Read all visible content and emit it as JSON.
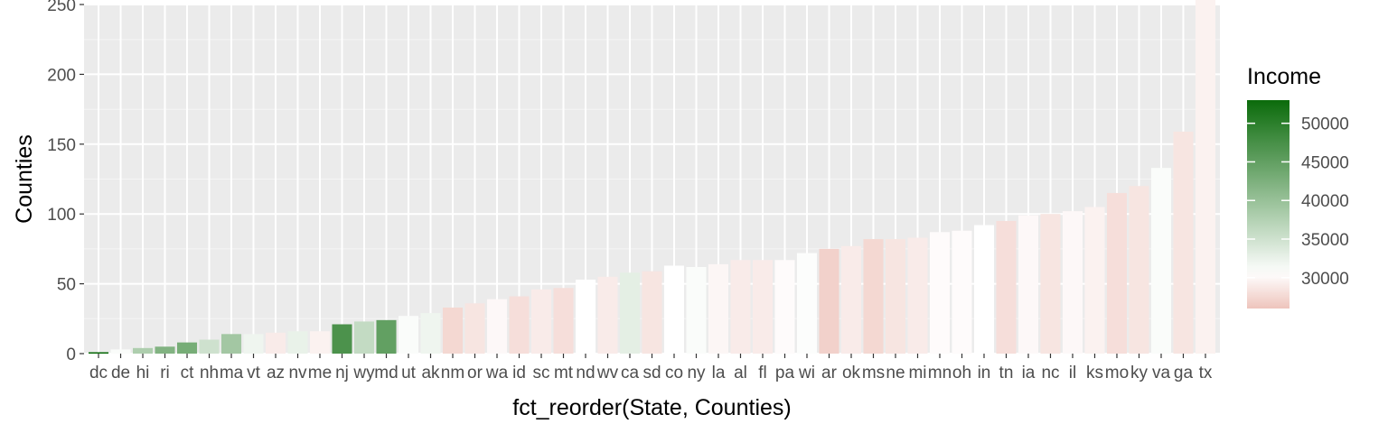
{
  "chart_data": {
    "type": "bar",
    "xlabel": "fct_reorder(State, Counties)",
    "ylabel": "Counties",
    "ylim": [
      0,
      250
    ],
    "yticks": [
      0,
      50,
      100,
      150,
      200,
      250
    ],
    "grid": true,
    "legend": {
      "title": "Income",
      "position": "right",
      "type": "colorbar",
      "ticks": [
        30000,
        35000,
        40000,
        45000,
        50000
      ],
      "tick_labels": [
        "30000",
        "35000",
        "40000",
        "45000",
        "50000"
      ],
      "range": [
        26000,
        53000
      ],
      "colors": {
        "low": "#eec4bc",
        "mid": "#ffffff",
        "high": "#0b6b0b",
        "midpoint": 30500
      }
    },
    "categories": [
      "dc",
      "de",
      "hi",
      "ri",
      "ct",
      "nh",
      "ma",
      "vt",
      "az",
      "nv",
      "me",
      "nj",
      "wy",
      "md",
      "ut",
      "ak",
      "nm",
      "or",
      "wa",
      "id",
      "sc",
      "mt",
      "nd",
      "wv",
      "ca",
      "sd",
      "co",
      "ny",
      "la",
      "al",
      "fl",
      "pa",
      "wi",
      "ar",
      "ok",
      "ms",
      "ne",
      "mi",
      "mn",
      "oh",
      "in",
      "tn",
      "ia",
      "nc",
      "il",
      "ks",
      "mo",
      "ky",
      "va",
      "ga",
      "tx"
    ],
    "values": [
      1,
      3,
      4,
      5,
      8,
      10,
      14,
      14,
      15,
      16,
      16,
      21,
      23,
      24,
      27,
      29,
      33,
      36,
      39,
      41,
      46,
      47,
      53,
      55,
      58,
      59,
      63,
      62,
      64,
      67,
      67,
      67,
      72,
      75,
      77,
      82,
      82,
      83,
      87,
      88,
      92,
      95,
      99,
      100,
      102,
      105,
      115,
      120,
      133,
      159,
      254
    ],
    "income": [
      53000,
      31000,
      38000,
      42000,
      43000,
      35000,
      39000,
      32000,
      29000,
      32500,
      29500,
      47000,
      36000,
      45000,
      31000,
      32000,
      27500,
      28500,
      30000,
      28000,
      29000,
      28000,
      30500,
      29000,
      33000,
      28500,
      30500,
      31000,
      29800,
      29000,
      29000,
      30200,
      30800,
      27000,
      29000,
      27500,
      28500,
      29000,
      30200,
      30200,
      30500,
      28000,
      30000,
      28500,
      30000,
      29500,
      28000,
      28500,
      31000,
      28500,
      29500
    ]
  }
}
